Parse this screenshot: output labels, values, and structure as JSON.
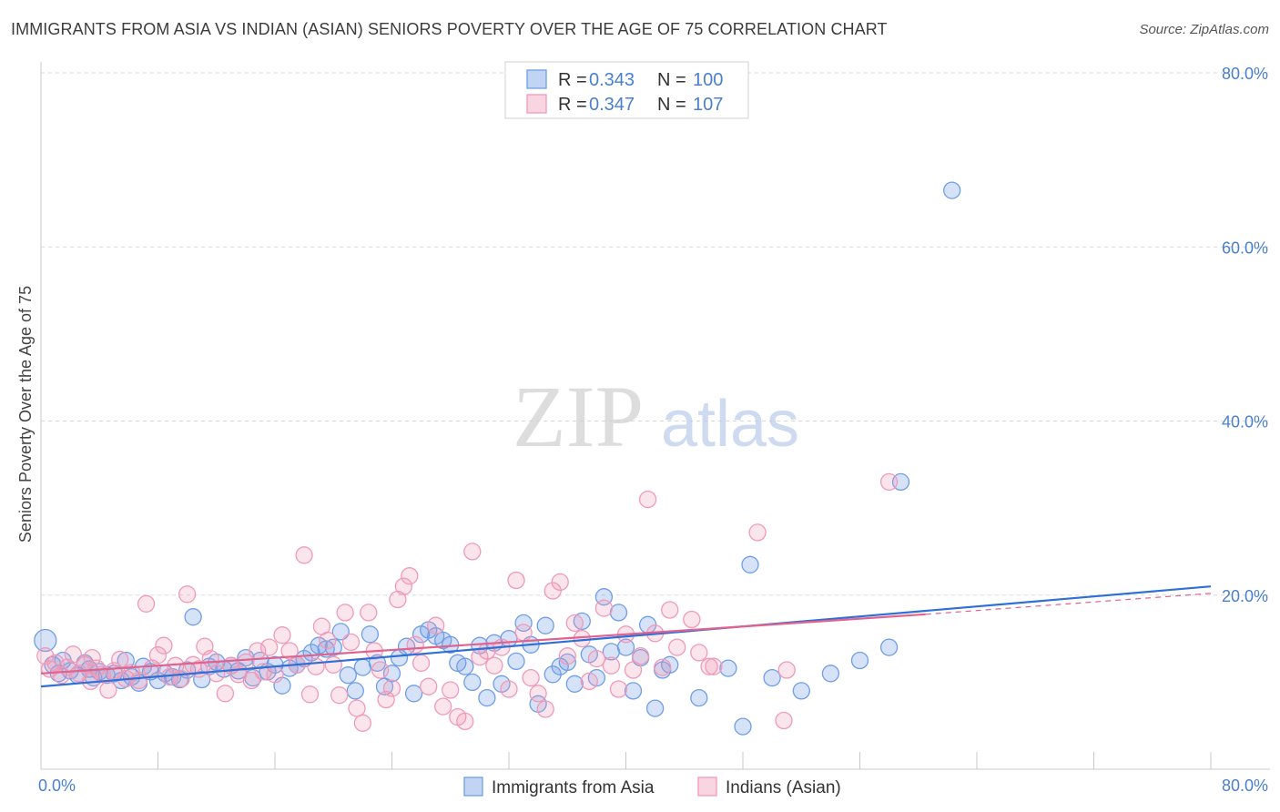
{
  "title": "IMMIGRANTS FROM ASIA VS INDIAN (ASIAN) SENIORS POVERTY OVER THE AGE OF 75 CORRELATION CHART",
  "source": "Source: ZipAtlas.com",
  "watermark": {
    "zip": "ZIP",
    "atlas": "atlas"
  },
  "colors": {
    "blue": "#6f9ee8",
    "blue_fill": "rgba(120,160,230,0.30)",
    "blue_line": "#2f6fd6",
    "pink": "#f09ab8",
    "pink_fill": "rgba(240,150,180,0.25)",
    "pink_line": "#e0628e",
    "grid": "#d8d8d8",
    "axis_text": "#4a7fd0"
  },
  "legend": {
    "rows": [
      {
        "r_label": "R = ",
        "r_value": "0.343",
        "n_label": "N = ",
        "n_value": "100",
        "color": "blue"
      },
      {
        "r_label": "R = ",
        "r_value": "0.347",
        "n_label": "N = ",
        "n_value": "107",
        "color": "pink"
      }
    ]
  },
  "chart_data": {
    "type": "scatter",
    "title": "IMMIGRANTS FROM ASIA VS INDIAN (ASIAN) SENIORS POVERTY OVER THE AGE OF 75 CORRELATION CHART",
    "xlabel": "",
    "ylabel": "Seniors Poverty Over the Age of 75",
    "xlim": [
      0,
      80
    ],
    "ylim": [
      0,
      80
    ],
    "x_tick_labels": [
      "0.0%",
      "80.0%"
    ],
    "y_ticks": [
      20,
      40,
      60,
      80
    ],
    "y_tick_labels": [
      "20.0%",
      "40.0%",
      "60.0%",
      "80.0%"
    ],
    "grid": true,
    "legend_position": "top-center",
    "series": [
      {
        "name": "Immigrants from Asia",
        "color": "blue",
        "trend": {
          "x0": 0,
          "y0": 9.5,
          "x1": 80,
          "y1": 21.0
        },
        "points": [
          [
            0.3,
            14.8
          ],
          [
            0.8,
            12.0
          ],
          [
            1.2,
            11.0
          ],
          [
            1.5,
            12.5
          ],
          [
            2.0,
            11.3
          ],
          [
            2.5,
            10.8
          ],
          [
            3.0,
            12.2
          ],
          [
            3.3,
            11.5
          ],
          [
            3.6,
            10.5
          ],
          [
            4.0,
            11.2
          ],
          [
            4.5,
            10.8
          ],
          [
            5.0,
            11.0
          ],
          [
            5.5,
            10.2
          ],
          [
            5.8,
            12.5
          ],
          [
            6.2,
            10.6
          ],
          [
            6.7,
            9.9
          ],
          [
            7.0,
            11.8
          ],
          [
            7.5,
            11.2
          ],
          [
            8.0,
            10.2
          ],
          [
            8.5,
            11.0
          ],
          [
            9.0,
            10.6
          ],
          [
            9.5,
            10.3
          ],
          [
            10.0,
            11.4
          ],
          [
            10.4,
            17.5
          ],
          [
            11.0,
            10.3
          ],
          [
            11.5,
            11.8
          ],
          [
            12.0,
            12.3
          ],
          [
            12.5,
            11.5
          ],
          [
            13.0,
            11.9
          ],
          [
            13.5,
            11.3
          ],
          [
            14.0,
            12.8
          ],
          [
            14.5,
            10.5
          ],
          [
            15.0,
            12.5
          ],
          [
            15.5,
            11.2
          ],
          [
            16.0,
            12.0
          ],
          [
            16.5,
            9.6
          ],
          [
            17.0,
            11.6
          ],
          [
            17.5,
            12.0
          ],
          [
            18.0,
            12.7
          ],
          [
            18.5,
            13.4
          ],
          [
            19.0,
            14.2
          ],
          [
            19.5,
            13.8
          ],
          [
            20.0,
            14.0
          ],
          [
            20.5,
            15.8
          ],
          [
            21.0,
            10.8
          ],
          [
            21.5,
            9.0
          ],
          [
            22.0,
            11.7
          ],
          [
            22.5,
            15.5
          ],
          [
            23.0,
            12.2
          ],
          [
            23.5,
            9.5
          ],
          [
            24.0,
            11.0
          ],
          [
            24.5,
            12.8
          ],
          [
            25.0,
            14.1
          ],
          [
            25.5,
            8.7
          ],
          [
            26.0,
            15.5
          ],
          [
            26.5,
            16.0
          ],
          [
            27.0,
            15.3
          ],
          [
            27.5,
            14.8
          ],
          [
            28.0,
            14.3
          ],
          [
            28.5,
            12.2
          ],
          [
            29.0,
            11.8
          ],
          [
            29.5,
            10.0
          ],
          [
            30.0,
            14.2
          ],
          [
            30.5,
            8.2
          ],
          [
            31.0,
            14.5
          ],
          [
            31.5,
            9.8
          ],
          [
            32.0,
            15.0
          ],
          [
            32.5,
            12.4
          ],
          [
            33.0,
            16.8
          ],
          [
            33.5,
            14.3
          ],
          [
            34.0,
            7.5
          ],
          [
            34.5,
            16.5
          ],
          [
            35.0,
            10.9
          ],
          [
            35.5,
            11.8
          ],
          [
            36.0,
            12.3
          ],
          [
            36.5,
            9.8
          ],
          [
            37.0,
            17.0
          ],
          [
            37.5,
            13.2
          ],
          [
            38.0,
            10.5
          ],
          [
            38.5,
            19.8
          ],
          [
            39.0,
            13.5
          ],
          [
            39.5,
            18.0
          ],
          [
            40.0,
            14.0
          ],
          [
            40.5,
            9.0
          ],
          [
            41.0,
            12.8
          ],
          [
            41.5,
            16.6
          ],
          [
            42.0,
            7.0
          ],
          [
            42.5,
            11.4
          ],
          [
            43.0,
            12.0
          ],
          [
            45.0,
            8.2
          ],
          [
            47.0,
            11.6
          ],
          [
            48.0,
            4.9
          ],
          [
            48.5,
            23.5
          ],
          [
            52.0,
            9.0
          ],
          [
            54.0,
            11.0
          ],
          [
            56.0,
            12.5
          ],
          [
            58.0,
            14.0
          ],
          [
            58.8,
            33.0
          ],
          [
            62.3,
            66.5
          ],
          [
            50.0,
            10.5
          ]
        ]
      },
      {
        "name": "Indians (Asian)",
        "color": "pink",
        "trend": {
          "x0": 0,
          "y0": 11.0,
          "x1": 60.5,
          "y1": 17.8
        },
        "trend_ext": {
          "x0": 60.5,
          "y0": 17.8,
          "x1": 80,
          "y1": 20.2
        },
        "points": [
          [
            0.3,
            13.0
          ],
          [
            0.6,
            11.5
          ],
          [
            1.0,
            12.2
          ],
          [
            1.4,
            10.8
          ],
          [
            1.8,
            11.7
          ],
          [
            2.2,
            13.2
          ],
          [
            2.6,
            11.0
          ],
          [
            3.0,
            12.0
          ],
          [
            3.4,
            10.1
          ],
          [
            3.8,
            11.6
          ],
          [
            4.2,
            10.9
          ],
          [
            4.6,
            9.1
          ],
          [
            5.0,
            11.3
          ],
          [
            5.4,
            12.6
          ],
          [
            5.8,
            10.4
          ],
          [
            6.2,
            11.1
          ],
          [
            6.7,
            10.2
          ],
          [
            7.2,
            19.0
          ],
          [
            7.6,
            11.6
          ],
          [
            8.0,
            13.1
          ],
          [
            8.4,
            14.2
          ],
          [
            8.8,
            10.6
          ],
          [
            9.2,
            11.9
          ],
          [
            9.6,
            10.4
          ],
          [
            10.0,
            20.1
          ],
          [
            10.4,
            12.0
          ],
          [
            10.8,
            11.5
          ],
          [
            11.2,
            14.1
          ],
          [
            11.6,
            12.7
          ],
          [
            12.0,
            11.0
          ],
          [
            12.6,
            8.7
          ],
          [
            13.0,
            11.9
          ],
          [
            13.5,
            10.9
          ],
          [
            14.0,
            12.3
          ],
          [
            14.4,
            10.2
          ],
          [
            14.8,
            13.6
          ],
          [
            15.2,
            11.2
          ],
          [
            15.6,
            14.0
          ],
          [
            16.0,
            10.9
          ],
          [
            16.5,
            15.4
          ],
          [
            17.0,
            13.6
          ],
          [
            17.5,
            12.0
          ],
          [
            18.0,
            24.6
          ],
          [
            18.4,
            8.6
          ],
          [
            18.8,
            11.8
          ],
          [
            19.2,
            16.4
          ],
          [
            19.6,
            14.8
          ],
          [
            20.0,
            12.0
          ],
          [
            20.4,
            8.5
          ],
          [
            20.8,
            18.0
          ],
          [
            21.2,
            14.6
          ],
          [
            21.6,
            7.0
          ],
          [
            22.0,
            5.3
          ],
          [
            22.4,
            18.0
          ],
          [
            22.8,
            13.6
          ],
          [
            23.2,
            11.4
          ],
          [
            23.6,
            8.0
          ],
          [
            24.0,
            9.3
          ],
          [
            24.4,
            19.5
          ],
          [
            24.8,
            21.0
          ],
          [
            25.2,
            22.2
          ],
          [
            25.6,
            14.3
          ],
          [
            26.0,
            12.2
          ],
          [
            26.5,
            9.5
          ],
          [
            27.0,
            16.5
          ],
          [
            27.5,
            7.2
          ],
          [
            28.0,
            9.1
          ],
          [
            28.5,
            6.0
          ],
          [
            29.0,
            5.5
          ],
          [
            29.5,
            25.0
          ],
          [
            30.0,
            12.9
          ],
          [
            30.5,
            13.6
          ],
          [
            31.0,
            11.9
          ],
          [
            31.5,
            14.0
          ],
          [
            32.0,
            9.2
          ],
          [
            32.5,
            21.7
          ],
          [
            33.0,
            15.7
          ],
          [
            33.5,
            10.5
          ],
          [
            34.0,
            8.7
          ],
          [
            34.5,
            6.9
          ],
          [
            35.0,
            20.5
          ],
          [
            35.5,
            21.5
          ],
          [
            36.0,
            13.0
          ],
          [
            36.5,
            16.8
          ],
          [
            37.0,
            15.0
          ],
          [
            37.5,
            10.1
          ],
          [
            38.0,
            12.7
          ],
          [
            38.5,
            18.5
          ],
          [
            39.0,
            11.9
          ],
          [
            39.5,
            9.2
          ],
          [
            40.0,
            15.5
          ],
          [
            40.5,
            11.4
          ],
          [
            41.0,
            13.0
          ],
          [
            41.5,
            31.0
          ],
          [
            42.0,
            15.6
          ],
          [
            42.5,
            11.7
          ],
          [
            43.0,
            18.3
          ],
          [
            43.5,
            14.0
          ],
          [
            44.5,
            17.2
          ],
          [
            45.0,
            13.4
          ],
          [
            45.7,
            11.8
          ],
          [
            46.0,
            11.8
          ],
          [
            49.0,
            27.2
          ],
          [
            50.8,
            5.6
          ],
          [
            51.0,
            11.4
          ],
          [
            58.0,
            33.0
          ],
          [
            3.5,
            12.8
          ]
        ]
      }
    ]
  },
  "bottom_legend": [
    {
      "label": "Immigrants from Asia",
      "color": "blue"
    },
    {
      "label": "Indians (Asian)",
      "color": "pink"
    }
  ]
}
